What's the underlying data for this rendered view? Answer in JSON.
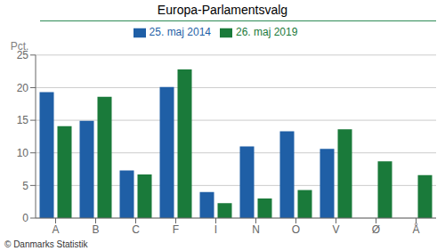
{
  "chart_data": {
    "type": "bar",
    "title": "Europa-Parlamentsvalg",
    "categories": [
      "A",
      "B",
      "C",
      "F",
      "I",
      "N",
      "O",
      "V",
      "Ø",
      "Å"
    ],
    "series": [
      {
        "name": "25. maj 2014",
        "color": "#1f5fa6",
        "values": [
          19.3,
          14.9,
          7.3,
          20.1,
          4.0,
          11.0,
          13.3,
          10.6,
          0.0,
          0.0
        ]
      },
      {
        "name": "26. maj 2019",
        "color": "#1a7a3a",
        "values": [
          14.1,
          18.6,
          6.7,
          22.8,
          2.3,
          3.0,
          4.3,
          13.6,
          8.7,
          6.6
        ]
      }
    ],
    "ylabel": "Pct.",
    "ylim": [
      0,
      25
    ],
    "yticks": [
      0,
      5,
      10,
      15,
      20,
      25
    ],
    "grid": true,
    "legend": "top",
    "annotations": [
      "© Danmarks Statistik"
    ]
  }
}
